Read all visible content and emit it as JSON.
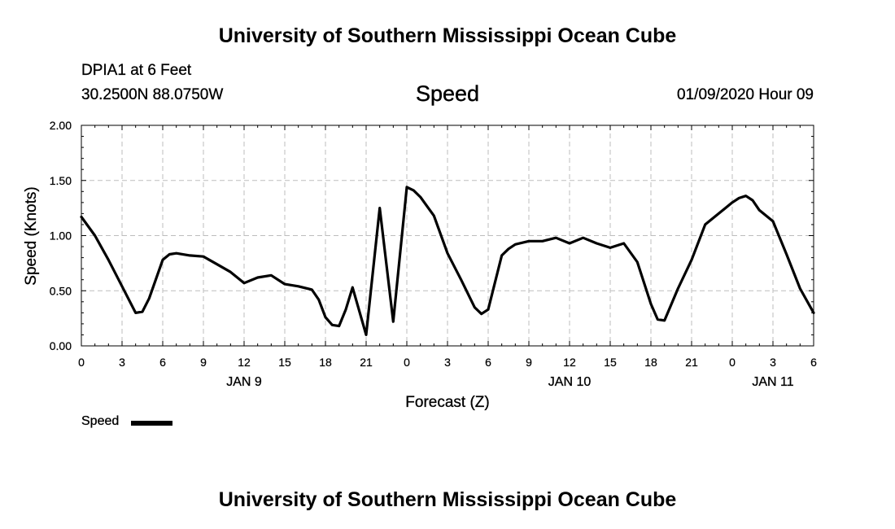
{
  "header": {
    "title": "University of Southern Mississippi Ocean Cube",
    "station": "DPIA1 at 6 Feet",
    "coordinates": "30.2500N 88.0750W",
    "parameter": "Speed",
    "timestamp": "01/09/2020 Hour 09"
  },
  "footer": {
    "title": "University of Southern Mississippi Ocean Cube"
  },
  "legend": {
    "label": "Speed"
  },
  "chart_data": {
    "type": "line",
    "title": "Speed",
    "xlabel": "Forecast (Z)",
    "ylabel": "Speed (Knots)",
    "ylim": [
      0,
      2
    ],
    "xlim": [
      0,
      54
    ],
    "x_tick_values": [
      0,
      3,
      6,
      9,
      12,
      15,
      18,
      21,
      24,
      27,
      30,
      33,
      36,
      39,
      42,
      45,
      48,
      51,
      54
    ],
    "x_tick_labels": [
      "0",
      "3",
      "6",
      "9",
      "12",
      "15",
      "18",
      "21",
      "0",
      "3",
      "6",
      "9",
      "12",
      "15",
      "18",
      "21",
      "0",
      "3",
      "6"
    ],
    "y_tick_values": [
      0,
      0.5,
      1,
      1.5,
      2
    ],
    "y_tick_labels": [
      "0.00",
      "0.50",
      "1.00",
      "1.50",
      "2.00"
    ],
    "date_labels": [
      {
        "label": "JAN 9",
        "x": 12
      },
      {
        "label": "JAN 10",
        "x": 36
      },
      {
        "label": "JAN 11",
        "x": 51
      }
    ],
    "grid": true,
    "legend_placement": "bottom-left",
    "line_color": "#000000",
    "series": [
      {
        "name": "Speed",
        "x": [
          0,
          1,
          2,
          3,
          4,
          4.5,
          5,
          6,
          6.5,
          7,
          8,
          9,
          10,
          11,
          12,
          13,
          14,
          15,
          16,
          17,
          17.5,
          18,
          18.5,
          19,
          19.5,
          20,
          21,
          22,
          23,
          24,
          24.5,
          25,
          26,
          27,
          28,
          29,
          29.5,
          30,
          31,
          31.5,
          32,
          33,
          34,
          35,
          36,
          37,
          38,
          39,
          40,
          41,
          42,
          42.5,
          43,
          44,
          45,
          46,
          47,
          48,
          48.5,
          49,
          49.5,
          50,
          51,
          52,
          53,
          54
        ],
        "y": [
          1.17,
          1.0,
          0.78,
          0.54,
          0.3,
          0.31,
          0.43,
          0.78,
          0.83,
          0.84,
          0.82,
          0.81,
          0.74,
          0.67,
          0.57,
          0.62,
          0.64,
          0.56,
          0.54,
          0.51,
          0.42,
          0.26,
          0.19,
          0.18,
          0.33,
          0.53,
          0.1,
          1.25,
          0.22,
          1.44,
          1.41,
          1.35,
          1.18,
          0.84,
          0.6,
          0.35,
          0.29,
          0.33,
          0.82,
          0.88,
          0.92,
          0.95,
          0.95,
          0.98,
          0.93,
          0.98,
          0.93,
          0.89,
          0.93,
          0.76,
          0.38,
          0.24,
          0.23,
          0.52,
          0.78,
          1.1,
          1.2,
          1.3,
          1.34,
          1.36,
          1.32,
          1.23,
          1.13,
          0.83,
          0.52,
          0.3
        ]
      }
    ]
  }
}
